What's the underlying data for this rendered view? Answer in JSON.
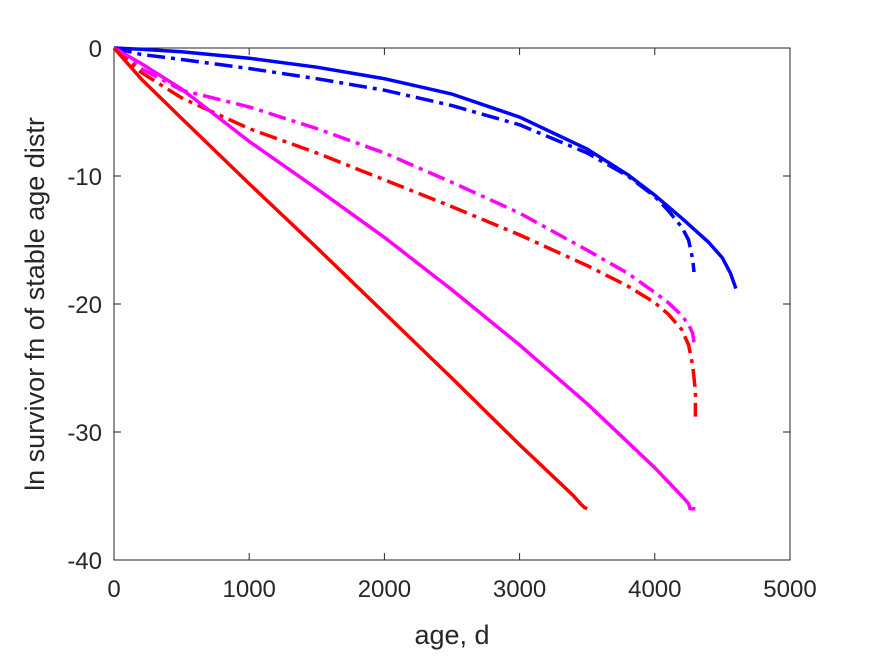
{
  "chart_data": {
    "type": "line",
    "title": "",
    "xlabel": "age, d",
    "ylabel": "ln survivor fn of stable age distr",
    "xlim": [
      0,
      5000
    ],
    "ylim": [
      -40,
      0
    ],
    "xticks": [
      0,
      1000,
      2000,
      3000,
      4000,
      5000
    ],
    "yticks": [
      0,
      -10,
      -20,
      -30,
      -40
    ],
    "grid": false,
    "legend": "none",
    "series": [
      {
        "color": "#0000ff",
        "style": "solid",
        "x": [
          0,
          200,
          500,
          1000,
          1500,
          2000,
          2500,
          3000,
          3500,
          3800,
          4000,
          4200,
          4400,
          4500,
          4560,
          4600
        ],
        "y": [
          0,
          -0.1,
          -0.3,
          -0.8,
          -1.5,
          -2.4,
          -3.6,
          -5.4,
          -7.9,
          -9.9,
          -11.5,
          -13.3,
          -15.2,
          -16.4,
          -17.6,
          -18.8
        ]
      },
      {
        "color": "#0000ff",
        "style": "dashdot",
        "x": [
          0,
          200,
          500,
          1000,
          1500,
          2000,
          2500,
          3000,
          3500,
          3800,
          4000,
          4100,
          4200,
          4250,
          4280,
          4290
        ],
        "y": [
          0,
          -0.5,
          -0.9,
          -1.6,
          -2.4,
          -3.3,
          -4.5,
          -6.0,
          -8.2,
          -10.0,
          -11.6,
          -12.7,
          -14.0,
          -15.0,
          -16.5,
          -17.5
        ]
      },
      {
        "color": "#ff00ff",
        "style": "dashdot",
        "x": [
          0,
          200,
          500,
          1000,
          1500,
          2000,
          2500,
          3000,
          3500,
          3800,
          4000,
          4100,
          4200,
          4250,
          4280,
          4290
        ],
        "y": [
          0,
          -1.6,
          -3.3,
          -4.6,
          -6.3,
          -8.2,
          -10.5,
          -12.9,
          -15.8,
          -17.6,
          -19.1,
          -19.9,
          -20.9,
          -21.6,
          -22.3,
          -23.0
        ]
      },
      {
        "color": "#ff0000",
        "style": "dashdot",
        "x": [
          0,
          200,
          500,
          1000,
          1500,
          2000,
          2500,
          3000,
          3500,
          3800,
          4000,
          4100,
          4200,
          4250,
          4280,
          4300,
          4300
        ],
        "y": [
          0,
          -1.9,
          -3.9,
          -6.3,
          -8.2,
          -10.3,
          -12.4,
          -14.6,
          -17.0,
          -18.6,
          -19.9,
          -20.8,
          -22.0,
          -23.2,
          -24.8,
          -26.8,
          -28.8
        ]
      },
      {
        "color": "#ff00ff",
        "style": "solid",
        "x": [
          0,
          200,
          500,
          1000,
          1500,
          2000,
          2500,
          3000,
          3500,
          3800,
          4000,
          4200,
          4250,
          4260,
          4300
        ],
        "y": [
          0,
          -1.2,
          -3.2,
          -7.3,
          -11.0,
          -14.8,
          -18.9,
          -23.2,
          -27.8,
          -30.8,
          -32.8,
          -35.0,
          -35.6,
          -36.0,
          -36.0
        ]
      },
      {
        "color": "#ff0000",
        "style": "solid",
        "x": [
          0,
          200,
          500,
          1000,
          1500,
          2000,
          2500,
          3000,
          3300,
          3400,
          3450,
          3480,
          3500
        ],
        "y": [
          0,
          -2.4,
          -5.5,
          -10.6,
          -15.6,
          -20.7,
          -25.8,
          -31.0,
          -34.0,
          -35.0,
          -35.6,
          -35.9,
          -36.0
        ]
      }
    ]
  }
}
